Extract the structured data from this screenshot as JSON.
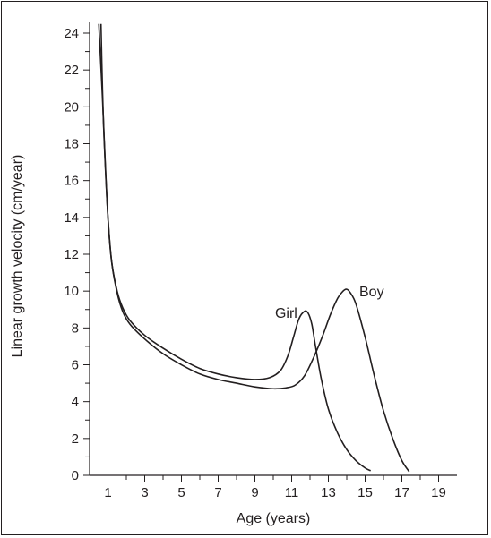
{
  "chart_data": {
    "type": "line",
    "title": "",
    "xlabel": "Age (years)",
    "ylabel": "Linear growth velocity (cm/year)",
    "xlim": [
      0,
      20
    ],
    "ylim": [
      0,
      24.5
    ],
    "x_ticks": [
      1,
      3,
      5,
      7,
      9,
      11,
      13,
      15,
      17,
      19
    ],
    "y_ticks": [
      0,
      2,
      4,
      6,
      8,
      10,
      12,
      14,
      16,
      18,
      20,
      22,
      24
    ],
    "grid": false,
    "legend": "none",
    "series": [
      {
        "name": "Girl",
        "x": [
          0.62,
          0.7,
          0.8,
          1.0,
          1.2,
          1.5,
          1.8,
          2.2,
          3.0,
          4.0,
          5.0,
          6.0,
          7.0,
          8.0,
          9.0,
          9.8,
          10.4,
          10.8,
          11.1,
          11.4,
          11.7,
          11.9,
          12.1,
          12.3,
          12.6,
          13.0,
          13.5,
          14.0,
          14.5,
          15.0,
          15.3
        ],
        "y": [
          24.5,
          21.0,
          18.0,
          14.0,
          11.6,
          10.0,
          9.1,
          8.4,
          7.6,
          6.9,
          6.3,
          5.8,
          5.5,
          5.3,
          5.2,
          5.3,
          5.7,
          6.5,
          7.5,
          8.5,
          8.9,
          8.8,
          8.2,
          7.0,
          5.3,
          3.6,
          2.3,
          1.4,
          0.8,
          0.4,
          0.25
        ]
      },
      {
        "name": "Boy",
        "x": [
          0.5,
          0.6,
          0.7,
          0.85,
          1.0,
          1.2,
          1.5,
          1.8,
          2.2,
          3.0,
          4.0,
          5.0,
          6.0,
          7.0,
          8.0,
          9.0,
          10.0,
          10.7,
          11.2,
          11.7,
          12.2,
          12.7,
          13.1,
          13.5,
          13.8,
          14.0,
          14.2,
          14.5,
          15.0,
          15.5,
          16.0,
          16.5,
          17.0,
          17.4
        ],
        "y": [
          24.5,
          22.5,
          20.5,
          17.0,
          14.0,
          11.6,
          9.9,
          8.9,
          8.2,
          7.4,
          6.6,
          6.0,
          5.5,
          5.2,
          5.0,
          4.8,
          4.7,
          4.75,
          4.9,
          5.4,
          6.4,
          7.6,
          8.7,
          9.6,
          10.0,
          10.1,
          9.9,
          9.3,
          7.5,
          5.4,
          3.5,
          2.0,
          0.8,
          0.2
        ]
      }
    ]
  }
}
